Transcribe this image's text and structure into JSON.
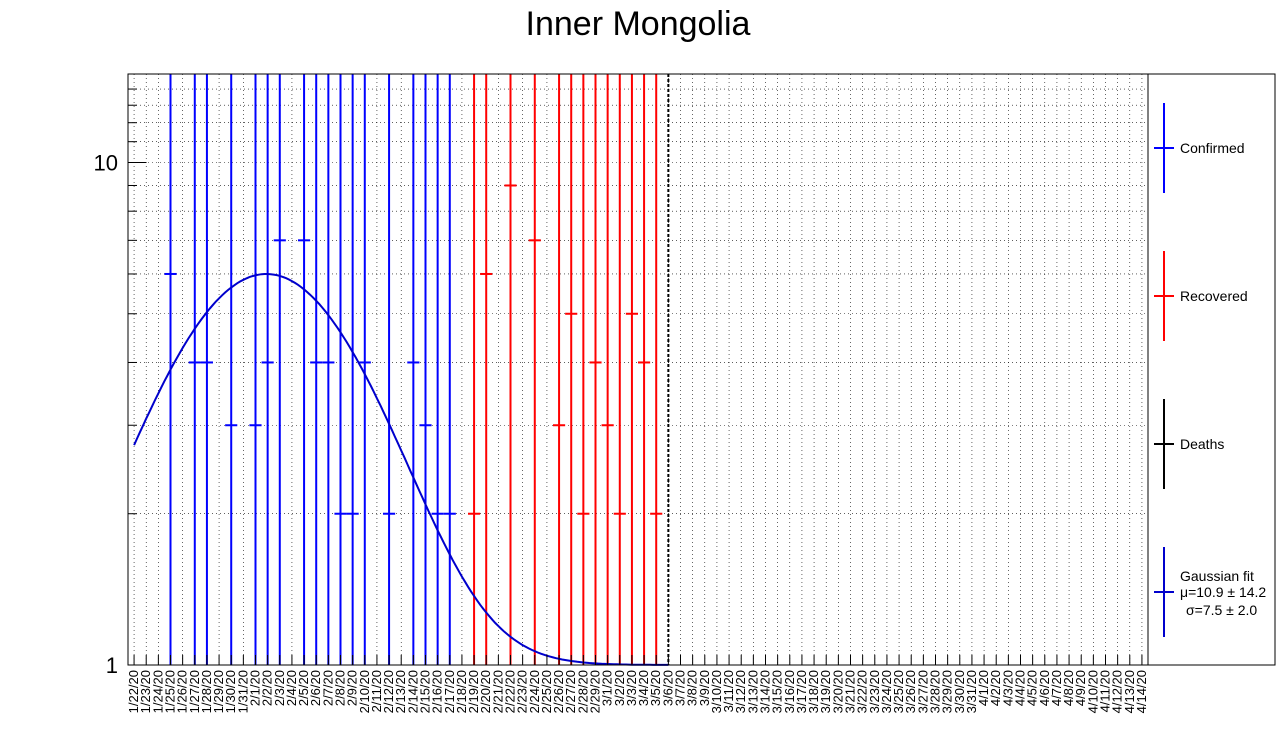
{
  "chart_data": {
    "type": "scatter",
    "title": "Inner Mongolia",
    "xlabel": "",
    "ylabel": "",
    "y_scale": "log",
    "ylim": [
      1,
      15
    ],
    "y_tick_labels": [
      "1",
      "10"
    ],
    "categories": [
      "1/22/20",
      "1/23/20",
      "1/24/20",
      "1/25/20",
      "1/26/20",
      "1/27/20",
      "1/28/20",
      "1/29/20",
      "1/30/20",
      "1/31/20",
      "2/1/20",
      "2/2/20",
      "2/3/20",
      "2/4/20",
      "2/5/20",
      "2/6/20",
      "2/7/20",
      "2/8/20",
      "2/9/20",
      "2/10/20",
      "2/11/20",
      "2/12/20",
      "2/13/20",
      "2/14/20",
      "2/15/20",
      "2/16/20",
      "2/17/20",
      "2/18/20",
      "2/19/20",
      "2/20/20",
      "2/21/20",
      "2/22/20",
      "2/23/20",
      "2/24/20",
      "2/25/20",
      "2/26/20",
      "2/27/20",
      "2/28/20",
      "2/29/20",
      "3/1/20",
      "3/2/20",
      "3/3/20",
      "3/4/20",
      "3/5/20",
      "3/6/20",
      "3/7/20",
      "3/8/20",
      "3/9/20",
      "3/10/20",
      "3/11/20",
      "3/12/20",
      "3/13/20",
      "3/14/20",
      "3/15/20",
      "3/16/20",
      "3/17/20",
      "3/18/20",
      "3/19/20",
      "3/20/20",
      "3/21/20",
      "3/22/20",
      "3/23/20",
      "3/24/20",
      "3/25/20",
      "3/26/20",
      "3/27/20",
      "3/28/20",
      "3/29/20",
      "3/30/20",
      "3/31/20",
      "4/1/20",
      "4/2/20",
      "4/3/20",
      "4/4/20",
      "4/5/20",
      "4/6/20",
      "4/7/20",
      "4/8/20",
      "4/9/20",
      "4/10/20",
      "4/11/20",
      "4/12/20",
      "4/13/20",
      "4/14/20"
    ],
    "series": [
      {
        "name": "Confirmed",
        "color": "#0000ff",
        "points": [
          [
            3,
            6
          ],
          [
            5,
            4
          ],
          [
            6,
            4
          ],
          [
            8,
            3
          ],
          [
            10,
            3
          ],
          [
            11,
            4
          ],
          [
            12,
            7
          ],
          [
            14,
            7
          ],
          [
            15,
            4
          ],
          [
            16,
            4
          ],
          [
            17,
            2
          ],
          [
            18,
            2
          ],
          [
            19,
            4
          ],
          [
            21,
            2
          ],
          [
            23,
            4
          ],
          [
            24,
            3
          ],
          [
            25,
            2
          ],
          [
            26,
            2
          ]
        ]
      },
      {
        "name": "Recovered",
        "color": "#ff0000",
        "points": [
          [
            28,
            2
          ],
          [
            29,
            6
          ],
          [
            31,
            9
          ],
          [
            33,
            7
          ],
          [
            35,
            3
          ],
          [
            36,
            5
          ],
          [
            37,
            2
          ],
          [
            38,
            4
          ],
          [
            39,
            3
          ],
          [
            40,
            2
          ],
          [
            41,
            5
          ],
          [
            42,
            4
          ],
          [
            43,
            2
          ]
        ]
      },
      {
        "name": "Deaths",
        "color": "#000000",
        "points": []
      }
    ],
    "fit": {
      "label": "Gaussian fit",
      "mu_text": "μ=10.9 ± 14.2",
      "sigma_text": "σ=7.5 ± 2.0",
      "mu": 10.9,
      "sigma": 7.5,
      "amplitude": 5.0,
      "baseline": 1,
      "x_range": [
        0,
        44
      ],
      "color": "#0000cc"
    },
    "vline_at": 44.5,
    "grid": true,
    "legend_position": "right"
  }
}
